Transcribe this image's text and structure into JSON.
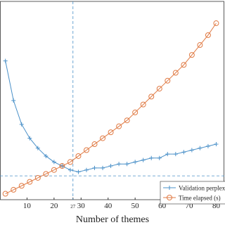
{
  "chart_data": {
    "type": "line",
    "x_label": "Number of themes",
    "x": [
      2,
      5,
      8,
      11,
      14,
      17,
      20,
      23,
      26,
      29,
      32,
      35,
      38,
      41,
      44,
      47,
      50,
      53,
      56,
      59,
      62,
      65,
      68,
      71,
      74,
      77,
      80
    ],
    "series": [
      {
        "name": "Validation perplexity",
        "color": "#4a90c8",
        "marker": "plus",
        "values": [
          70,
          50,
          38,
          31,
          26,
          22,
          19,
          17,
          15,
          14,
          15,
          16,
          16,
          17,
          18,
          18,
          19,
          20,
          21,
          21,
          23,
          23,
          24,
          25,
          26,
          27,
          28
        ]
      },
      {
        "name": "Time elapsed (s)",
        "color": "#e07b45",
        "marker": "circle",
        "values": [
          3,
          5,
          7,
          9,
          11,
          13,
          15,
          17,
          19,
          22,
          25,
          28,
          31,
          34,
          37,
          40,
          44,
          48,
          52,
          56,
          60,
          64,
          68,
          73,
          78,
          83,
          89
        ]
      }
    ],
    "xlim": [
      0,
      83
    ],
    "xticks": [
      10,
      20,
      27,
      30,
      40,
      50,
      60,
      70,
      80
    ],
    "ylim": [
      0,
      100
    ],
    "vline": 27,
    "hline": 12,
    "legend": "lower-right"
  }
}
